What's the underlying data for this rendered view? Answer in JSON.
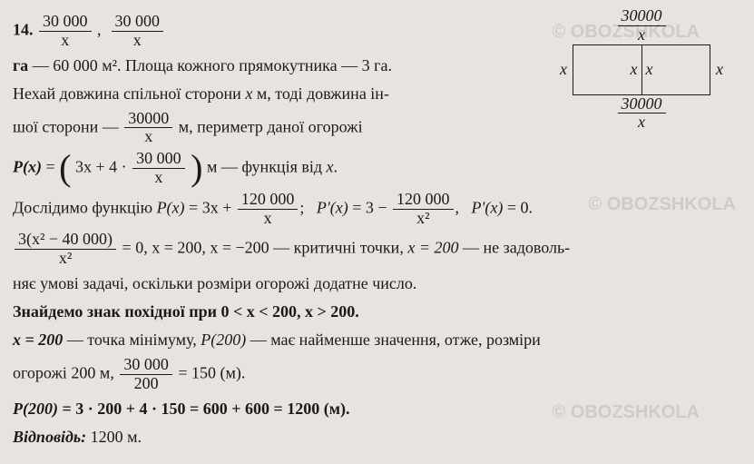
{
  "problem_no": "14.",
  "watermark": "© OBOZSHKOLA",
  "text": {
    "t1a": " — 60 000 м². Площа кожного прямокутника — 3 га.",
    "t1b": "Нехай довжина спільної сторони ",
    "t1c": " м, тоді довжина ін-",
    "t2a": "шої сторони — ",
    "t2b": " м, периметр даної огорожі",
    "t3": " м — функція від ",
    "t4": "Дослідимо функцію ",
    "t5a": " — критичні точки, ",
    "t5b": " — не задоволь-",
    "t6": "няє умові задачі, оскільки розміри огорожі додатне число.",
    "t7": "Знайдемо знак похідної при ",
    "t8a": " — точка мінімуму, ",
    "t8b": " — має найменше значення, отже, розміри",
    "t9a": "огорожі 200 м, ",
    "t9b": " = 150 (м).",
    "t10": " = 3 · 200 + 4 · 150 = 600 + 600 = 1200 (м).",
    "ans_label": "Відповідь:",
    "ans_val": " 1200 м."
  },
  "math": {
    "f30k": "30 000",
    "f30k_ns": "30000",
    "x": "x",
    "Px": "P(x)",
    "Ppx": "P'(x)",
    "eq1_inner": "3x + 4 · ",
    "eq2": " = 3x + ",
    "n120k": "120 000",
    "eq3": " = 3 − ",
    "xsq": "x²",
    "eq3b": " = 0.",
    "frac_top": "3(x² − 40 000)",
    "eq4": " = 0,  x = 200,  x = −200",
    "x200": "x = 200",
    "cond": "0 < x < 200,  x > 200.",
    "xval": "x = 200",
    "P200": "P(200)",
    "P200b": "P(200)",
    "f30k_200_num": "30 000",
    "f30k_200_den": "200"
  },
  "colors": {
    "bg": "#e7e4df",
    "text": "#1a1a1a",
    "wm": "rgba(120,120,120,0.22)"
  }
}
